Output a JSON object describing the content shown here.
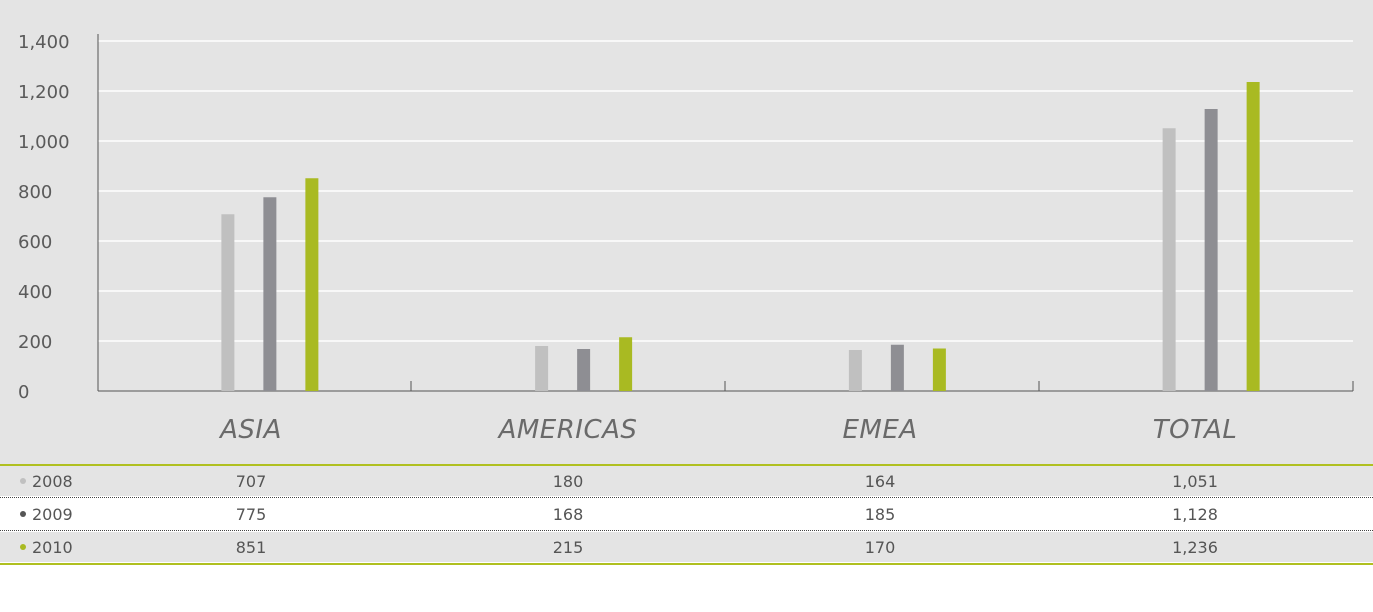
{
  "chart_data": {
    "type": "bar",
    "categories": [
      "ASIA",
      "AMERICAS",
      "EMEA",
      "TOTAL"
    ],
    "series": [
      {
        "name": "2008",
        "color": "#c0c0c0",
        "values": [
          707,
          180,
          164,
          1051
        ]
      },
      {
        "name": "2009",
        "color": "#8e8e93",
        "values": [
          775,
          168,
          185,
          1128
        ]
      },
      {
        "name": "2010",
        "color": "#a9ba22",
        "values": [
          851,
          215,
          170,
          1236
        ]
      }
    ],
    "yticks": [
      "0",
      "200",
      "400",
      "600",
      "800",
      "1,000",
      "1,200",
      "1,400"
    ],
    "ylim": [
      0,
      1400
    ],
    "grid": true,
    "table": {
      "rows": [
        {
          "label": "2008",
          "cells": [
            "707",
            "180",
            "164",
            "1,051"
          ]
        },
        {
          "label": "2009",
          "cells": [
            "775",
            "168",
            "185",
            "1,128"
          ]
        },
        {
          "label": "2010",
          "cells": [
            "851",
            "215",
            "170",
            "1,236"
          ]
        }
      ]
    }
  }
}
